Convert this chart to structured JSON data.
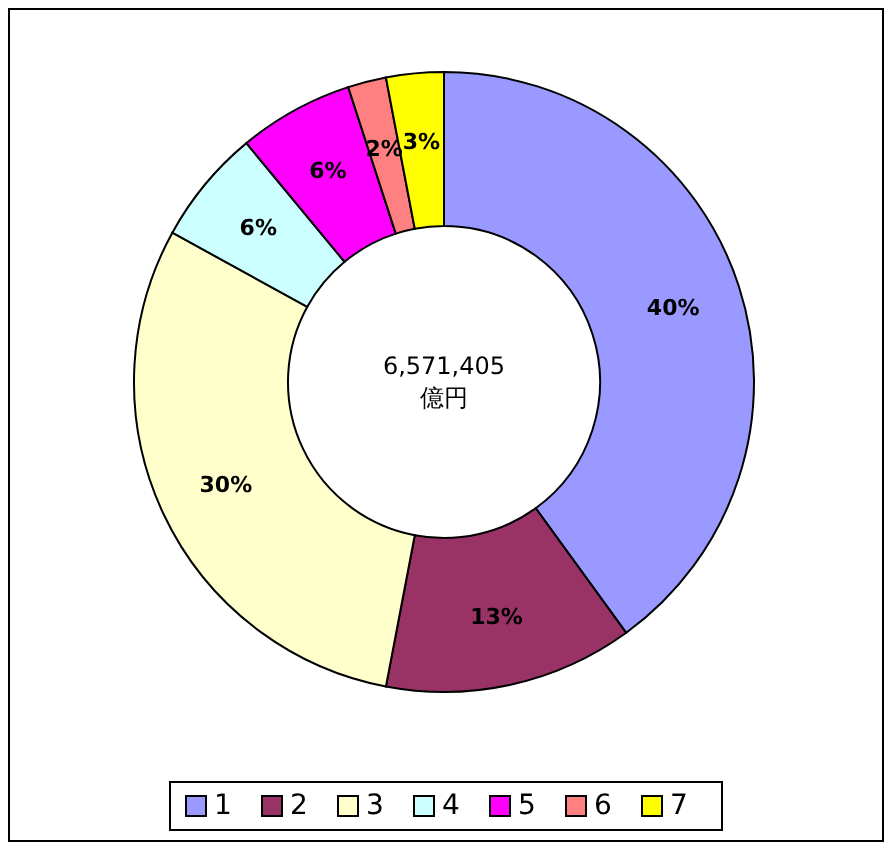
{
  "chart_data": {
    "type": "donut",
    "categories": [
      "1",
      "2",
      "3",
      "4",
      "5",
      "6",
      "7"
    ],
    "values": [
      40,
      13,
      30,
      6,
      6,
      2,
      3
    ],
    "colors": [
      "#9999ff",
      "#993366",
      "#ffffcc",
      "#ccffff",
      "#ff00ff",
      "#ff8080",
      "#ffff00"
    ],
    "value_labels": [
      "40%",
      "13%",
      "30%",
      "6%",
      "6%",
      "2%",
      "3%"
    ],
    "annotations": [
      "6,571,405",
      "億円"
    ],
    "legend": "bottom"
  }
}
